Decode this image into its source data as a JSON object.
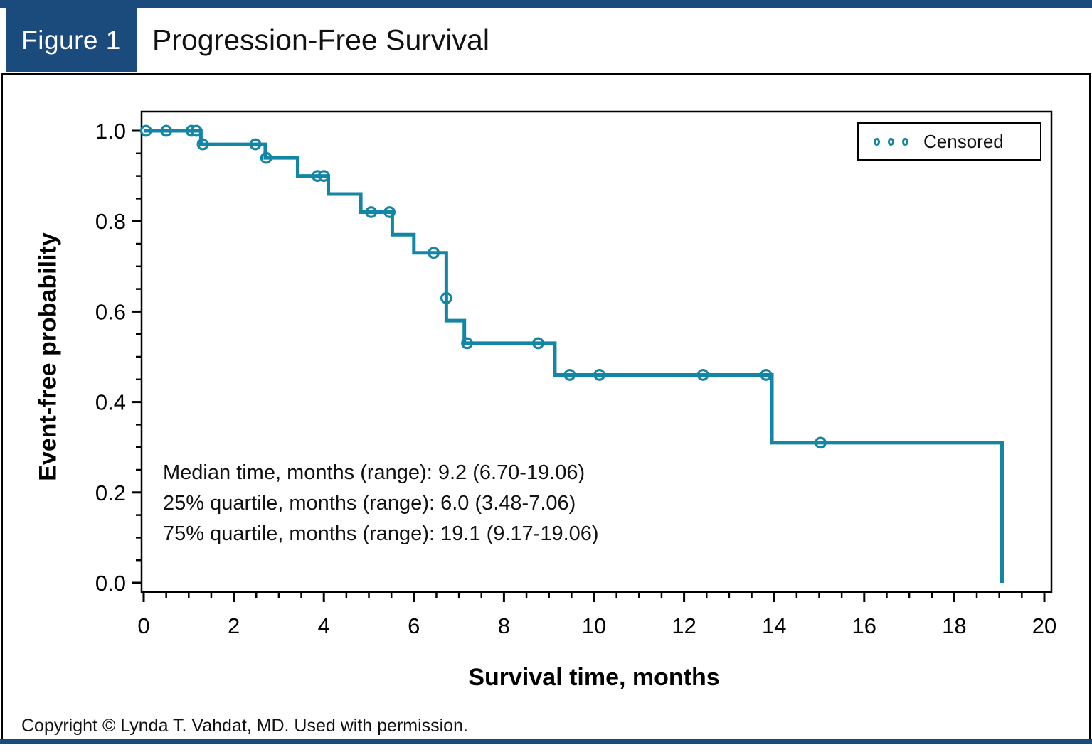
{
  "figure": {
    "label": "Figure 1",
    "title": "Progression-Free Survival",
    "copyright": "Copyright © Lynda T. Vahdat, MD. Used with permission."
  },
  "colors": {
    "header_navy": "#1B4A7C",
    "curve_teal": "#1486A5",
    "axis_black": "#000000"
  },
  "chart_data": {
    "type": "line",
    "subtype": "kaplan-meier-step-curve",
    "title": "Progression-Free Survival",
    "xlabel": "Survival time, months",
    "ylabel": "Event-free probability",
    "xlim": [
      0,
      20
    ],
    "ylim": [
      0.0,
      1.0
    ],
    "x_major_ticks": [
      0,
      2,
      4,
      6,
      8,
      10,
      12,
      14,
      16,
      18,
      20
    ],
    "x_minor_tick_step": 0.5,
    "y_major_ticks": [
      0.0,
      0.2,
      0.4,
      0.6,
      0.8,
      1.0
    ],
    "y_minor_tick_step": 0.05,
    "grid": false,
    "legend": {
      "label": "Censored",
      "position": "top-right",
      "marker": "open-circle"
    },
    "series": [
      {
        "name": "Progression-free survival",
        "start_point": [
          0,
          1.0
        ],
        "drops": [
          [
            1.27,
            0.97
          ],
          [
            2.7,
            0.94
          ],
          [
            3.42,
            0.9
          ],
          [
            4.1,
            0.86
          ],
          [
            4.82,
            0.82
          ],
          [
            5.52,
            0.77
          ],
          [
            6.0,
            0.73
          ],
          [
            6.72,
            0.58
          ],
          [
            7.12,
            0.53
          ],
          [
            9.13,
            0.46
          ],
          [
            13.95,
            0.31
          ],
          [
            19.06,
            0.0
          ]
        ],
        "censored_points": [
          [
            0.05,
            1.0
          ],
          [
            0.5,
            1.0
          ],
          [
            1.06,
            1.0
          ],
          [
            1.17,
            1.0
          ],
          [
            1.31,
            0.97
          ],
          [
            2.48,
            0.97
          ],
          [
            2.72,
            0.94
          ],
          [
            3.86,
            0.9
          ],
          [
            4.0,
            0.9
          ],
          [
            5.05,
            0.82
          ],
          [
            5.46,
            0.82
          ],
          [
            6.44,
            0.73
          ],
          [
            6.72,
            0.63
          ],
          [
            7.18,
            0.53
          ],
          [
            8.76,
            0.53
          ],
          [
            9.46,
            0.46
          ],
          [
            10.12,
            0.46
          ],
          [
            12.42,
            0.46
          ],
          [
            13.82,
            0.46
          ],
          [
            15.03,
            0.31
          ]
        ]
      }
    ],
    "annotations": [
      "Median time, months (range): 9.2 (6.70-19.06)",
      "25% quartile, months (range): 6.0 (3.48-7.06)",
      "75% quartile, months (range): 19.1 (9.17-19.06)"
    ]
  }
}
